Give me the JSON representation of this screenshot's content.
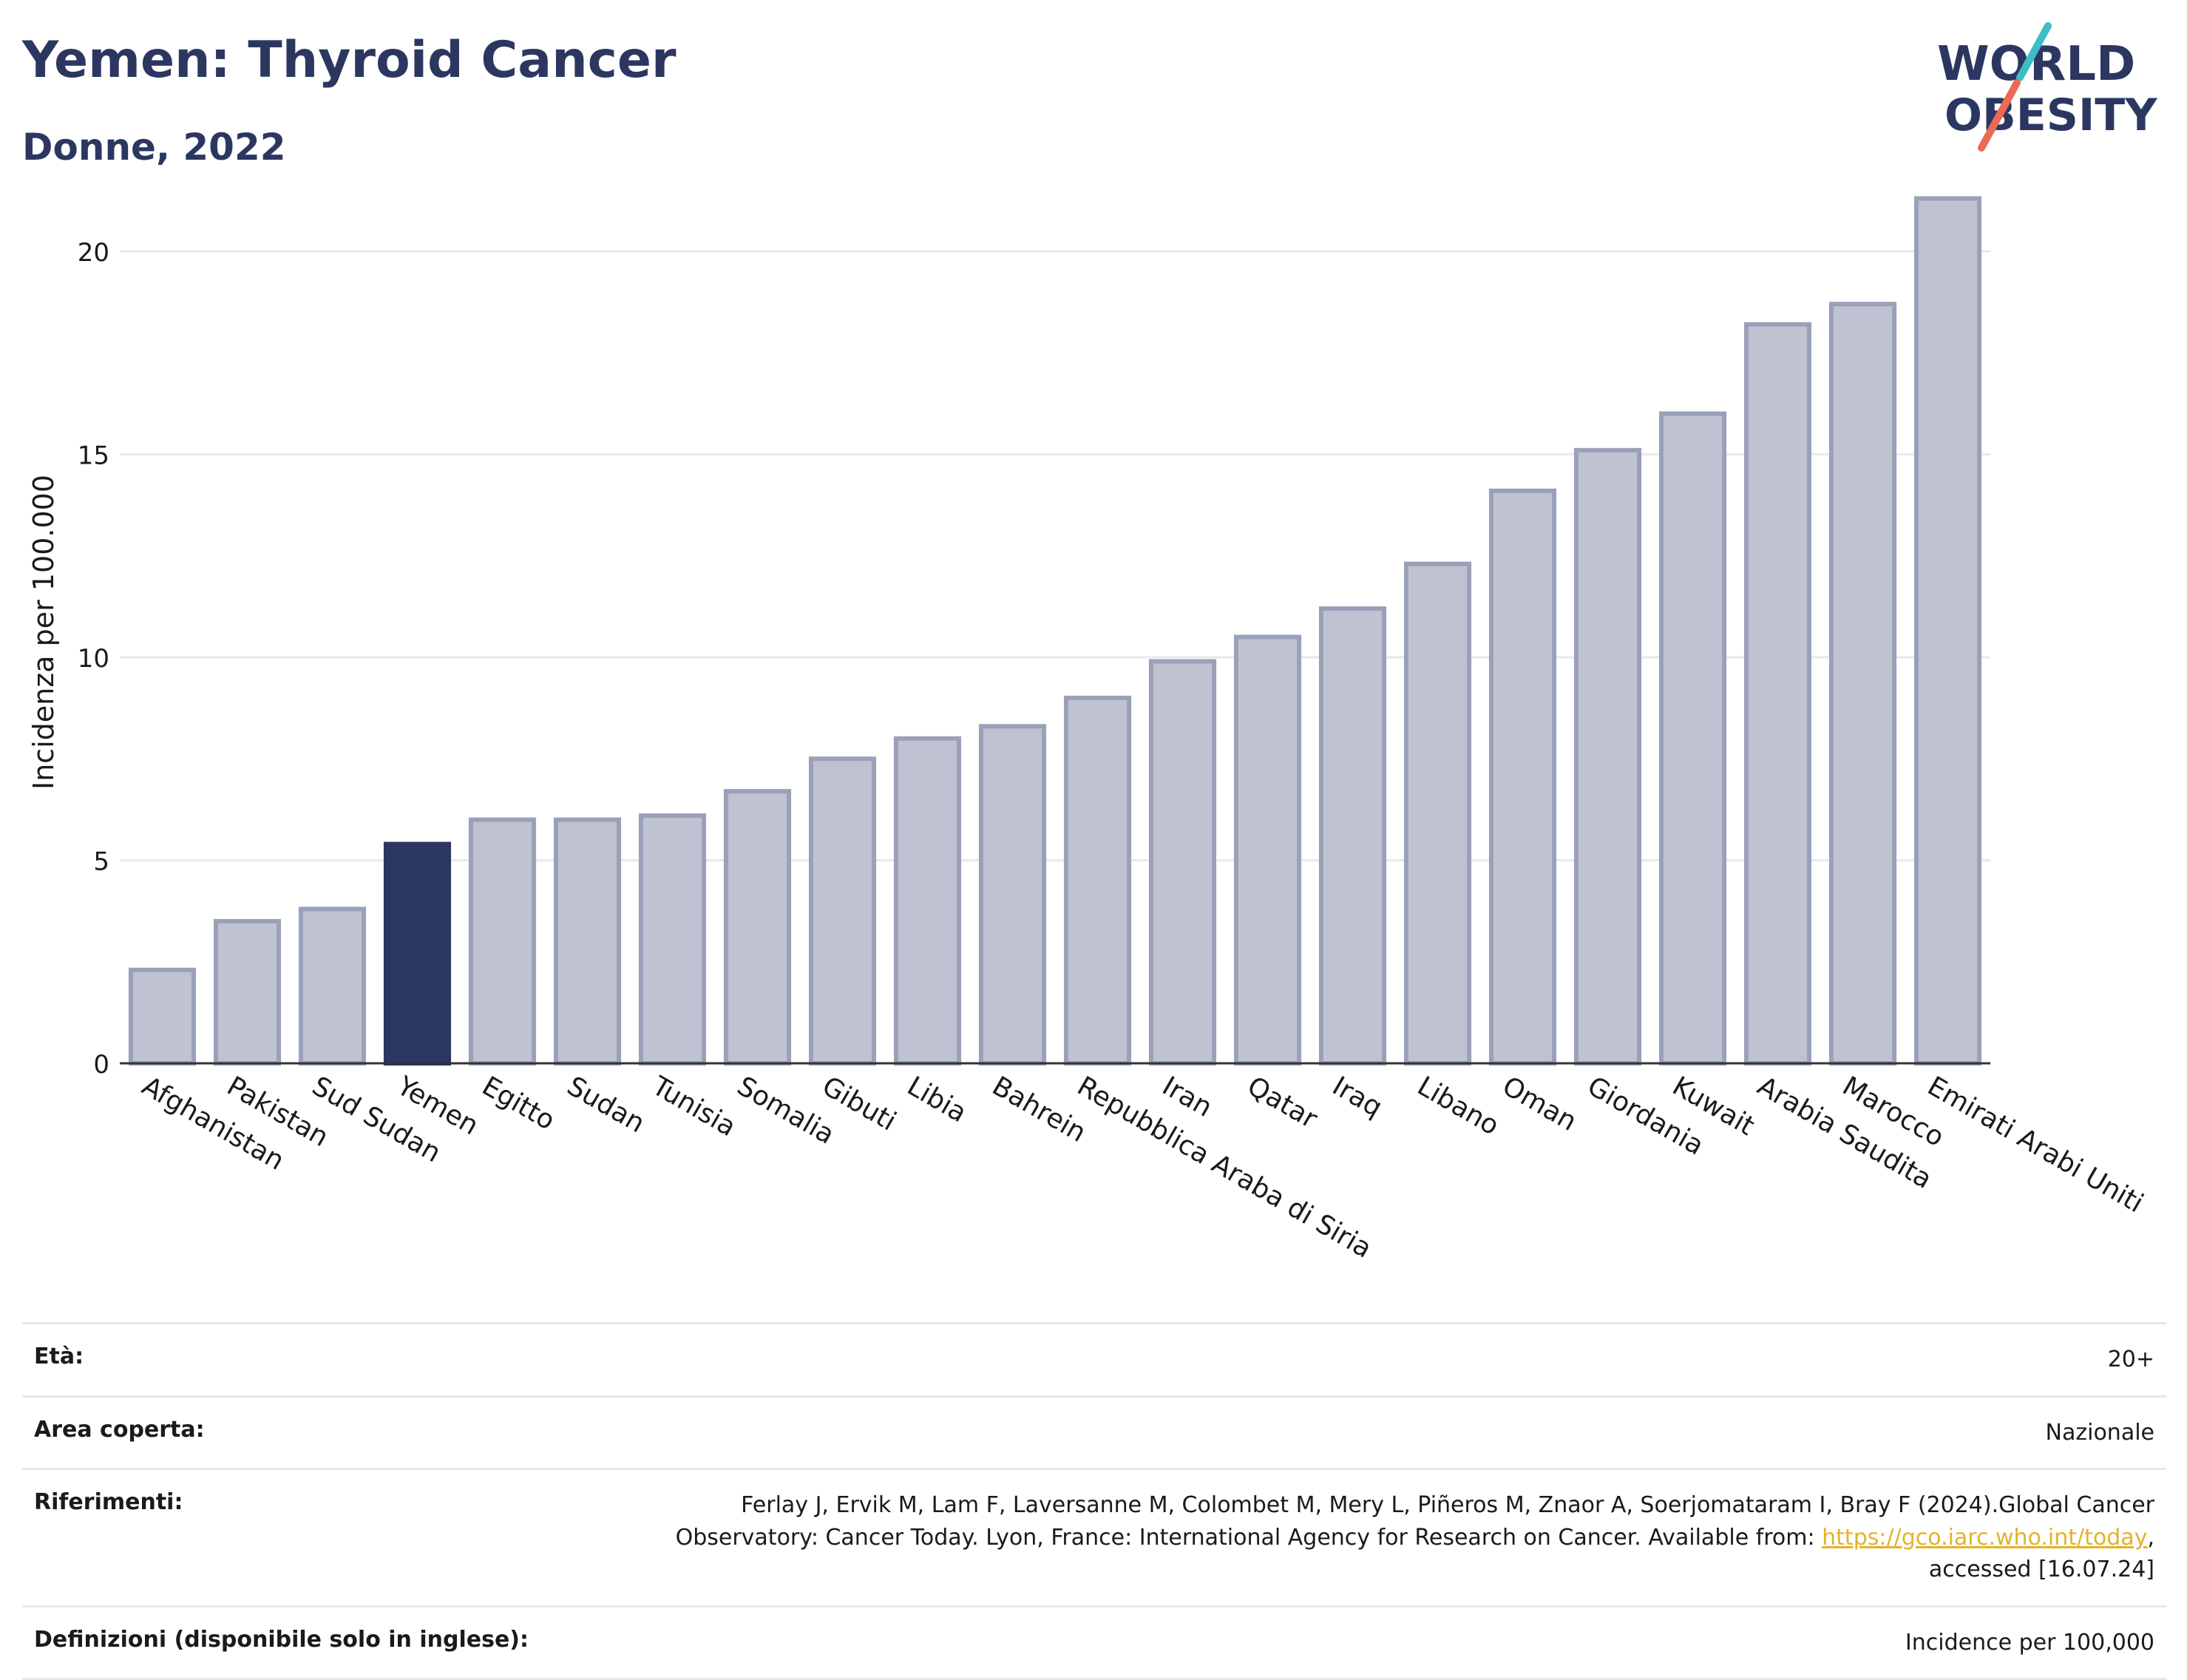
{
  "header": {
    "title": "Yemen: Thyroid Cancer",
    "subtitle": "Donne, 2022"
  },
  "logo": {
    "line1": "WORLD",
    "line2": "OBESITY",
    "accent_teal": "#3dbdc4",
    "accent_coral": "#ea6a55",
    "text_color": "#2c3761"
  },
  "colors": {
    "highlight": "#2c3761",
    "bar_fill": "#bfc3d1",
    "bar_stroke": "#9aa0b8",
    "grid": "#e6e9ef"
  },
  "chart_data": {
    "type": "bar",
    "ylabel": "Incidenza per 100.000",
    "ylim": [
      0,
      22
    ],
    "yticks": [
      0,
      5,
      10,
      15,
      20
    ],
    "highlight": "Yemen",
    "categories": [
      "Afghanistan",
      "Pakistan",
      "Sud Sudan",
      "Yemen",
      "Egitto",
      "Sudan",
      "Tunisia",
      "Somalia",
      "Gibuti",
      "Libia",
      "Bahrein",
      "Repubblica Araba di Siria",
      "Iran",
      "Qatar",
      "Iraq",
      "Libano",
      "Oman",
      "Giordania",
      "Kuwait",
      "Arabia Saudita",
      "Marocco",
      "Emirati Arabi Uniti"
    ],
    "values": [
      2.3,
      3.5,
      3.8,
      5.4,
      6.0,
      6.0,
      6.1,
      6.7,
      7.5,
      8.0,
      8.3,
      9.0,
      9.9,
      10.5,
      11.2,
      12.3,
      14.1,
      15.1,
      16.0,
      18.2,
      18.7,
      21.3
    ]
  },
  "meta": {
    "age_label": "Età:",
    "age_value": "20+",
    "area_label": "Area coperta:",
    "area_value": "Nazionale",
    "refs_label": "Riferimenti:",
    "refs_text1": "Ferlay J, Ervik M, Lam F, Laversanne M, Colombet M, Mery L, Piñeros M, Znaor A, Soerjomataram I, Bray F (2024).Global Cancer Observatory: Cancer Today. Lyon, France: International Agency for Research on Cancer. Available from: ",
    "refs_link": "https://gco.iarc.who.int/today",
    "refs_text2": ", accessed [16.07.24]",
    "defs_label": "Definizioni (disponibile solo in inglese):",
    "defs_value": "Incidence per 100,000"
  }
}
